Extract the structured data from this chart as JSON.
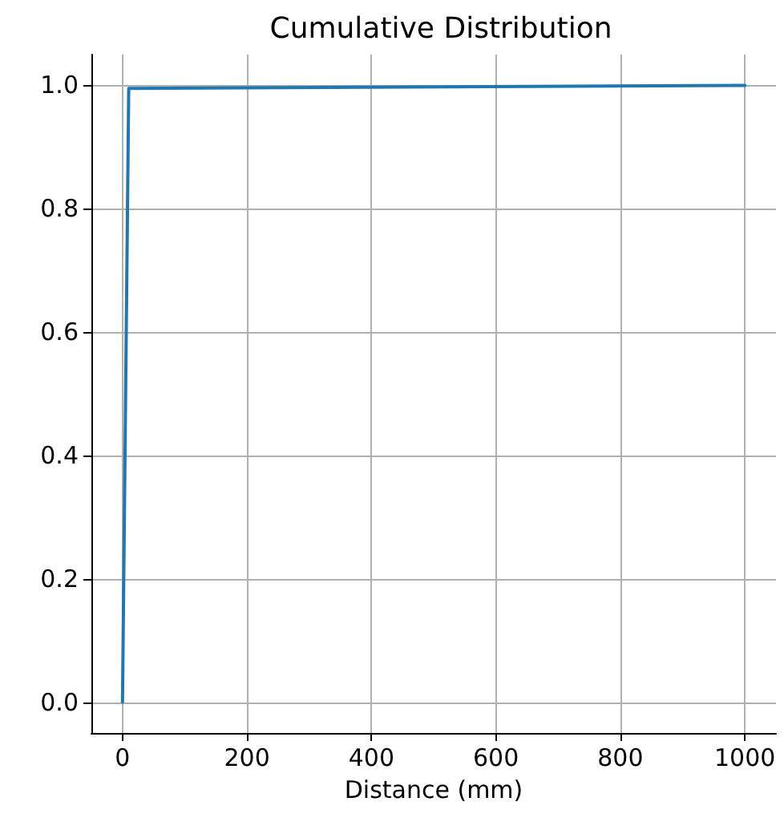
{
  "chart_data": {
    "type": "line",
    "title": "Cumulative Distribution",
    "xlabel": "Distance (mm)",
    "series": [
      {
        "color": "#1f77b4",
        "x": [
          0,
          10,
          1000
        ],
        "values": [
          0,
          0.995,
          1.0
        ]
      }
    ],
    "xlim": [
      -50,
      1050
    ],
    "xticks": [
      0,
      200,
      400,
      600,
      800,
      1000
    ],
    "ylim": [
      -0.05,
      1.05
    ],
    "yticks": [
      {
        "value": 0,
        "label": "0.0"
      },
      {
        "value": 0.2,
        "label": "0.2"
      },
      {
        "value": 0.4,
        "label": "0.4"
      },
      {
        "value": 0.6,
        "label": "0.6"
      },
      {
        "value": 0.8,
        "label": "0.8"
      },
      {
        "value": 1,
        "label": "1.0"
      }
    ],
    "grid": true,
    "marker": "none",
    "line_style": "solid"
  }
}
